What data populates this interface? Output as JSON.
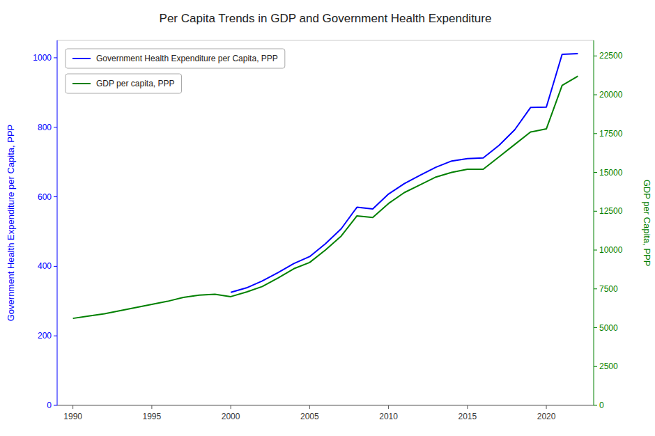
{
  "chart_data": {
    "type": "line",
    "title": "Per Capita Trends in GDP and Government Health Expenditure",
    "ylabel": "Government Health Expenditure per Capita, PPP",
    "y2label": "GDP per Capita, PPP",
    "xlim": [
      1989,
      2023
    ],
    "xticks": [
      1990,
      1995,
      2000,
      2005,
      2010,
      2015,
      2020
    ],
    "ylim": [
      0,
      1050
    ],
    "yticks": [
      0,
      200,
      400,
      600,
      800,
      1000
    ],
    "y2lim": [
      0,
      23500
    ],
    "y2ticks": [
      0,
      2500,
      5000,
      7500,
      10000,
      12500,
      15000,
      17500,
      20000,
      22500
    ],
    "grid": false,
    "legend": "upper left",
    "series": [
      {
        "name": "Government Health Expenditure per Capita, PPP",
        "color": "blue",
        "axis": "y",
        "x": [
          2000,
          2001,
          2002,
          2003,
          2004,
          2005,
          2006,
          2007,
          2008,
          2009,
          2010,
          2011,
          2012,
          2013,
          2014,
          2015,
          2016,
          2017,
          2018,
          2019,
          2020,
          2021,
          2022
        ],
        "values": [
          325,
          338,
          358,
          382,
          408,
          428,
          465,
          508,
          570,
          565,
          608,
          638,
          662,
          685,
          703,
          710,
          712,
          748,
          793,
          857,
          858,
          1010,
          1012
        ]
      },
      {
        "name": "GDP per capita, PPP",
        "color": "green",
        "axis": "y2",
        "x": [
          1990,
          1991,
          1992,
          1993,
          1994,
          1995,
          1996,
          1997,
          1998,
          1999,
          2000,
          2001,
          2002,
          2003,
          2004,
          2005,
          2006,
          2007,
          2008,
          2009,
          2010,
          2011,
          2012,
          2013,
          2014,
          2015,
          2016,
          2017,
          2018,
          2019,
          2020,
          2021,
          2022
        ],
        "values": [
          5600,
          5750,
          5900,
          6100,
          6300,
          6500,
          6700,
          6950,
          7100,
          7150,
          7000,
          7300,
          7650,
          8200,
          8800,
          9200,
          10000,
          10900,
          12200,
          12100,
          13000,
          13700,
          14200,
          14700,
          15000,
          15200,
          15200,
          16000,
          16800,
          17600,
          17800,
          20600,
          21200
        ]
      }
    ]
  }
}
